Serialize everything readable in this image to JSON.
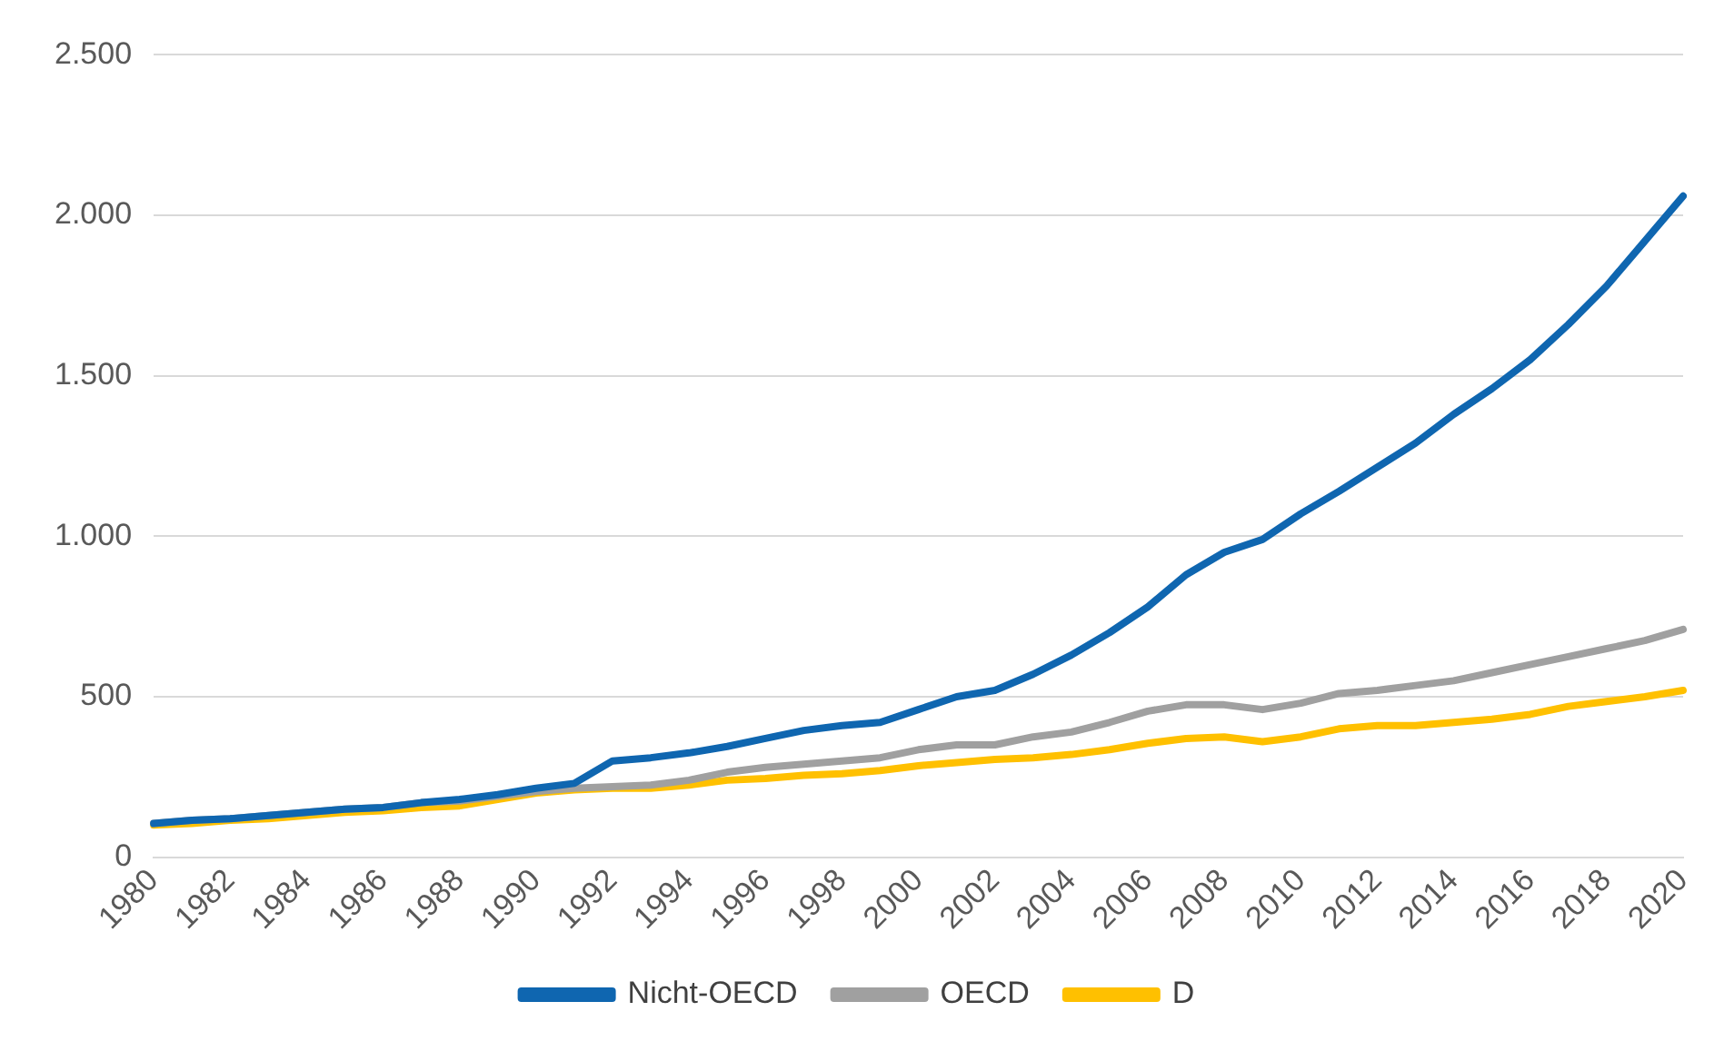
{
  "chart_data": {
    "type": "line",
    "categories": [
      "1980",
      null,
      "1982",
      null,
      "1984",
      null,
      "1986",
      null,
      "1988",
      null,
      "1990",
      null,
      "1992",
      null,
      "1994",
      null,
      "1996",
      null,
      "1998",
      null,
      "2000",
      null,
      "2002",
      null,
      "2004",
      null,
      "2006",
      null,
      "2008",
      null,
      "2010",
      null,
      "2012",
      null,
      "2014",
      null,
      "2016",
      null,
      "2018",
      null,
      "2020"
    ],
    "series": [
      {
        "name": "Nicht-OECD",
        "color": "#0f66b0",
        "values": [
          105,
          115,
          120,
          130,
          140,
          150,
          155,
          170,
          180,
          195,
          215,
          230,
          300,
          310,
          325,
          345,
          370,
          395,
          410,
          420,
          460,
          500,
          520,
          570,
          630,
          700,
          780,
          880,
          950,
          990,
          1070,
          1140,
          1215,
          1290,
          1380,
          1460,
          1550,
          1660,
          1780,
          1920,
          2060
        ]
      },
      {
        "name": "OECD",
        "color": "#a0a0a0",
        "values": [
          105,
          115,
          120,
          130,
          140,
          150,
          155,
          170,
          175,
          190,
          205,
          215,
          220,
          225,
          240,
          265,
          280,
          290,
          300,
          310,
          335,
          350,
          350,
          375,
          390,
          420,
          455,
          475,
          475,
          460,
          480,
          510,
          520,
          535,
          550,
          575,
          600,
          625,
          650,
          675,
          710
        ]
      },
      {
        "name": "D",
        "color": "#ffc000",
        "values": [
          100,
          105,
          115,
          120,
          130,
          140,
          145,
          155,
          160,
          180,
          200,
          210,
          215,
          215,
          225,
          240,
          245,
          255,
          260,
          270,
          285,
          295,
          305,
          310,
          320,
          335,
          355,
          370,
          375,
          360,
          375,
          400,
          410,
          410,
          420,
          430,
          445,
          470,
          485,
          500,
          520
        ]
      }
    ],
    "ylim": [
      0,
      2500
    ],
    "yticks": [
      {
        "value": 0,
        "label": "0"
      },
      {
        "value": 500,
        "label": "500"
      },
      {
        "value": 1000,
        "label": "1.000"
      },
      {
        "value": 1500,
        "label": "1.500"
      },
      {
        "value": 2000,
        "label": "2.000"
      },
      {
        "value": 2500,
        "label": "2.500"
      }
    ],
    "grid": "y",
    "legend": "bottom",
    "marker": "none",
    "line_style": "solid"
  }
}
